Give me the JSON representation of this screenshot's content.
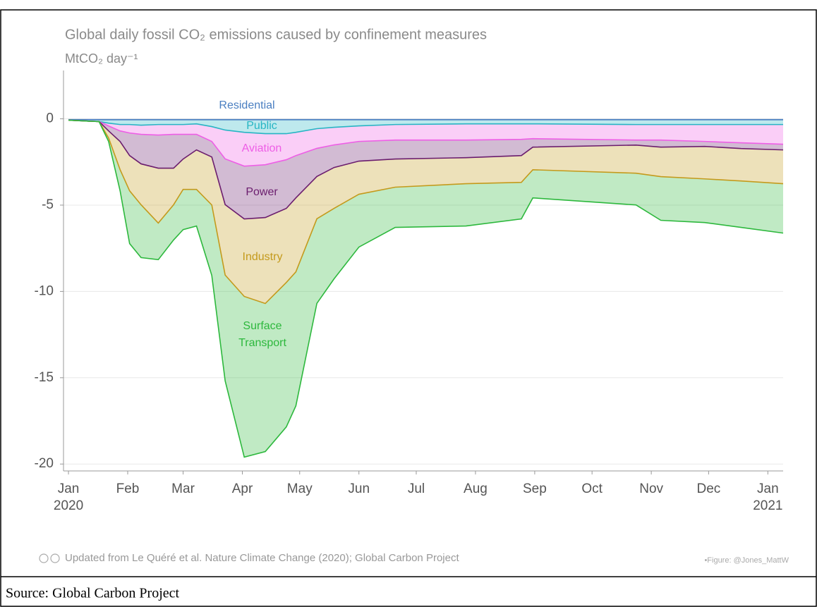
{
  "chart_data": {
    "type": "stacked_area",
    "title": "Global daily fossil CO₂ emissions caused by confinement measures",
    "subtitle": "MtCO₂ day⁻¹",
    "x": [
      0,
      16,
      21,
      27,
      32,
      38,
      47,
      55,
      60,
      67,
      75,
      82,
      92,
      103,
      114,
      119,
      130,
      139,
      152,
      171,
      208,
      237,
      243,
      297,
      310,
      333,
      352,
      374
    ],
    "series": [
      {
        "name": "Residential",
        "color": "#4a7fc1",
        "values": [
          -0.05,
          -0.05,
          -0.05,
          -0.05,
          -0.05,
          -0.05,
          -0.05,
          -0.05,
          -0.05,
          -0.05,
          -0.05,
          -0.05,
          -0.05,
          -0.05,
          -0.05,
          -0.05,
          -0.05,
          -0.05,
          -0.05,
          -0.05,
          -0.05,
          -0.05,
          -0.05,
          -0.05,
          -0.05,
          -0.05,
          -0.05,
          -0.05
        ]
      },
      {
        "name": "Public",
        "color": "#27b5c4",
        "values": [
          -0.03,
          -0.11,
          -0.2,
          -0.28,
          -0.28,
          -0.32,
          -0.28,
          -0.28,
          -0.28,
          -0.24,
          -0.4,
          -0.6,
          -0.73,
          -0.81,
          -0.81,
          -0.73,
          -0.52,
          -0.44,
          -0.36,
          -0.28,
          -0.24,
          -0.24,
          -0.24,
          -0.28,
          -0.28,
          -0.28,
          -0.28,
          -0.28
        ]
      },
      {
        "name": "Aviation",
        "color": "#ee5ee6",
        "values": [
          0,
          0,
          -0.16,
          -0.37,
          -0.49,
          -0.53,
          -0.61,
          -0.57,
          -0.57,
          -0.61,
          -0.86,
          -1.67,
          -1.96,
          -1.8,
          -1.51,
          -1.35,
          -1.14,
          -1.02,
          -0.9,
          -0.9,
          -0.94,
          -0.9,
          -0.86,
          -0.9,
          -0.9,
          -0.98,
          -1.06,
          -1.14
        ]
      },
      {
        "name": "Power",
        "color": "#6b1d6e",
        "values": [
          0,
          0,
          -0.29,
          -0.61,
          -1.31,
          -1.71,
          -1.92,
          -1.96,
          -1.43,
          -0.9,
          -0.9,
          -2.65,
          -3.06,
          -3.06,
          -2.82,
          -2.45,
          -1.63,
          -1.31,
          -1.14,
          -1.1,
          -1.02,
          -0.94,
          -0.49,
          -0.29,
          -0.41,
          -0.29,
          -0.33,
          -0.33
        ]
      },
      {
        "name": "Industry",
        "color": "#c49a1c",
        "values": [
          0,
          0,
          -0.41,
          -1.63,
          -2.04,
          -2.37,
          -3.18,
          -2.12,
          -1.76,
          -2.29,
          -2.78,
          -4.08,
          -4.49,
          -4.98,
          -4.29,
          -4.29,
          -2.45,
          -2.37,
          -1.92,
          -1.63,
          -1.51,
          -1.55,
          -1.31,
          -1.63,
          -1.71,
          -1.88,
          -1.88,
          -1.96
        ]
      },
      {
        "name": "Surface Transport",
        "color": "#2db83d",
        "values": [
          0,
          0,
          -0.2,
          -1.22,
          -3.06,
          -3.06,
          -2.12,
          -2.04,
          -2.33,
          -2.12,
          -4.08,
          -6.13,
          -9.31,
          -8.58,
          -8.37,
          -7.76,
          -4.9,
          -4.08,
          -3.06,
          -2.33,
          -2.45,
          -2.12,
          -1.63,
          -1.84,
          -2.53,
          -2.53,
          -2.69,
          -2.86
        ]
      }
    ],
    "xlim": [
      -2.6,
      374
    ],
    "xticks": [
      {
        "value": 0,
        "label": "Jan"
      },
      {
        "value": 31,
        "label": "Feb"
      },
      {
        "value": 60,
        "label": "Mar"
      },
      {
        "value": 91,
        "label": "Apr"
      },
      {
        "value": 121,
        "label": "May"
      },
      {
        "value": 152,
        "label": "Jun"
      },
      {
        "value": 182,
        "label": "Jul"
      },
      {
        "value": 213,
        "label": "Aug"
      },
      {
        "value": 244,
        "label": "Sep"
      },
      {
        "value": 274,
        "label": "Oct"
      },
      {
        "value": 305,
        "label": "Nov"
      },
      {
        "value": 335,
        "label": "Dec"
      },
      {
        "value": 366,
        "label": "Jan"
      }
    ],
    "year_labels": [
      {
        "value": 0,
        "label": "2020"
      },
      {
        "value": 366,
        "label": "2021"
      }
    ],
    "ylim": [
      -20.4,
      2.8
    ],
    "yticks": [
      0,
      -5,
      -10,
      -15,
      -20
    ],
    "grid": true,
    "footer": "Updated from Le Quéré et al. Nature Climate Change (2020); Global Carbon Project",
    "credit": "•Figure: @Jones_MattW"
  },
  "caption": "Source: Global Carbon Project"
}
